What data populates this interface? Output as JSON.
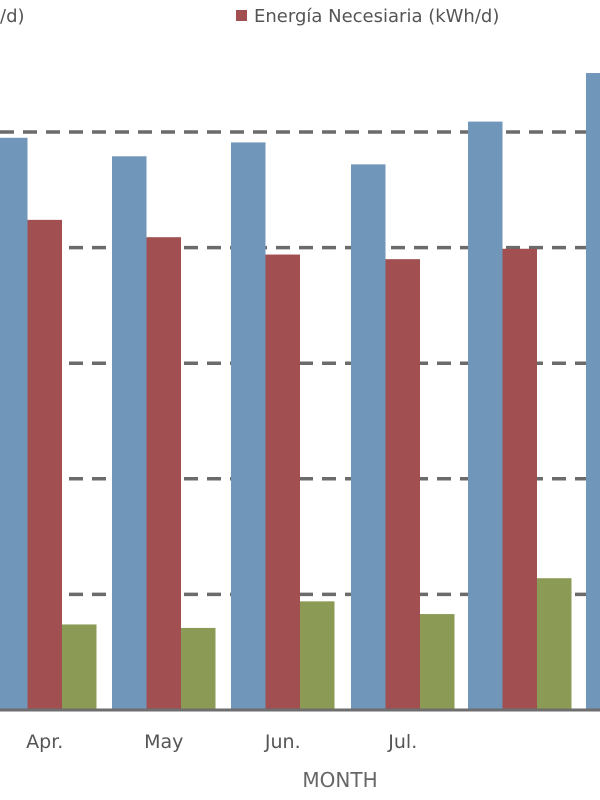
{
  "chart_data": {
    "type": "bar",
    "xlabel": "MONTH",
    "categories": [
      "Apr.",
      "May",
      "Jun.",
      "Jul.",
      "",
      ""
    ],
    "y_grid": [
      100,
      200,
      300,
      400,
      500
    ],
    "ylim": [
      0,
      600
    ],
    "grid": "dashed horizontal",
    "legend_position": "top",
    "series": [
      {
        "values": [
          495,
          479,
          491,
          472,
          509,
          551
        ],
        "color": "#7096b9"
      },
      {
        "name": "Energía Necesiaria (kWh/d)",
        "values": [
          424,
          409,
          394,
          390,
          399,
          null
        ],
        "color": "#a14f51"
      },
      {
        "values": [
          74,
          71,
          94,
          83,
          114,
          null
        ],
        "color": "#8b9b55"
      }
    ],
    "legend_partial_text": "/d)"
  }
}
